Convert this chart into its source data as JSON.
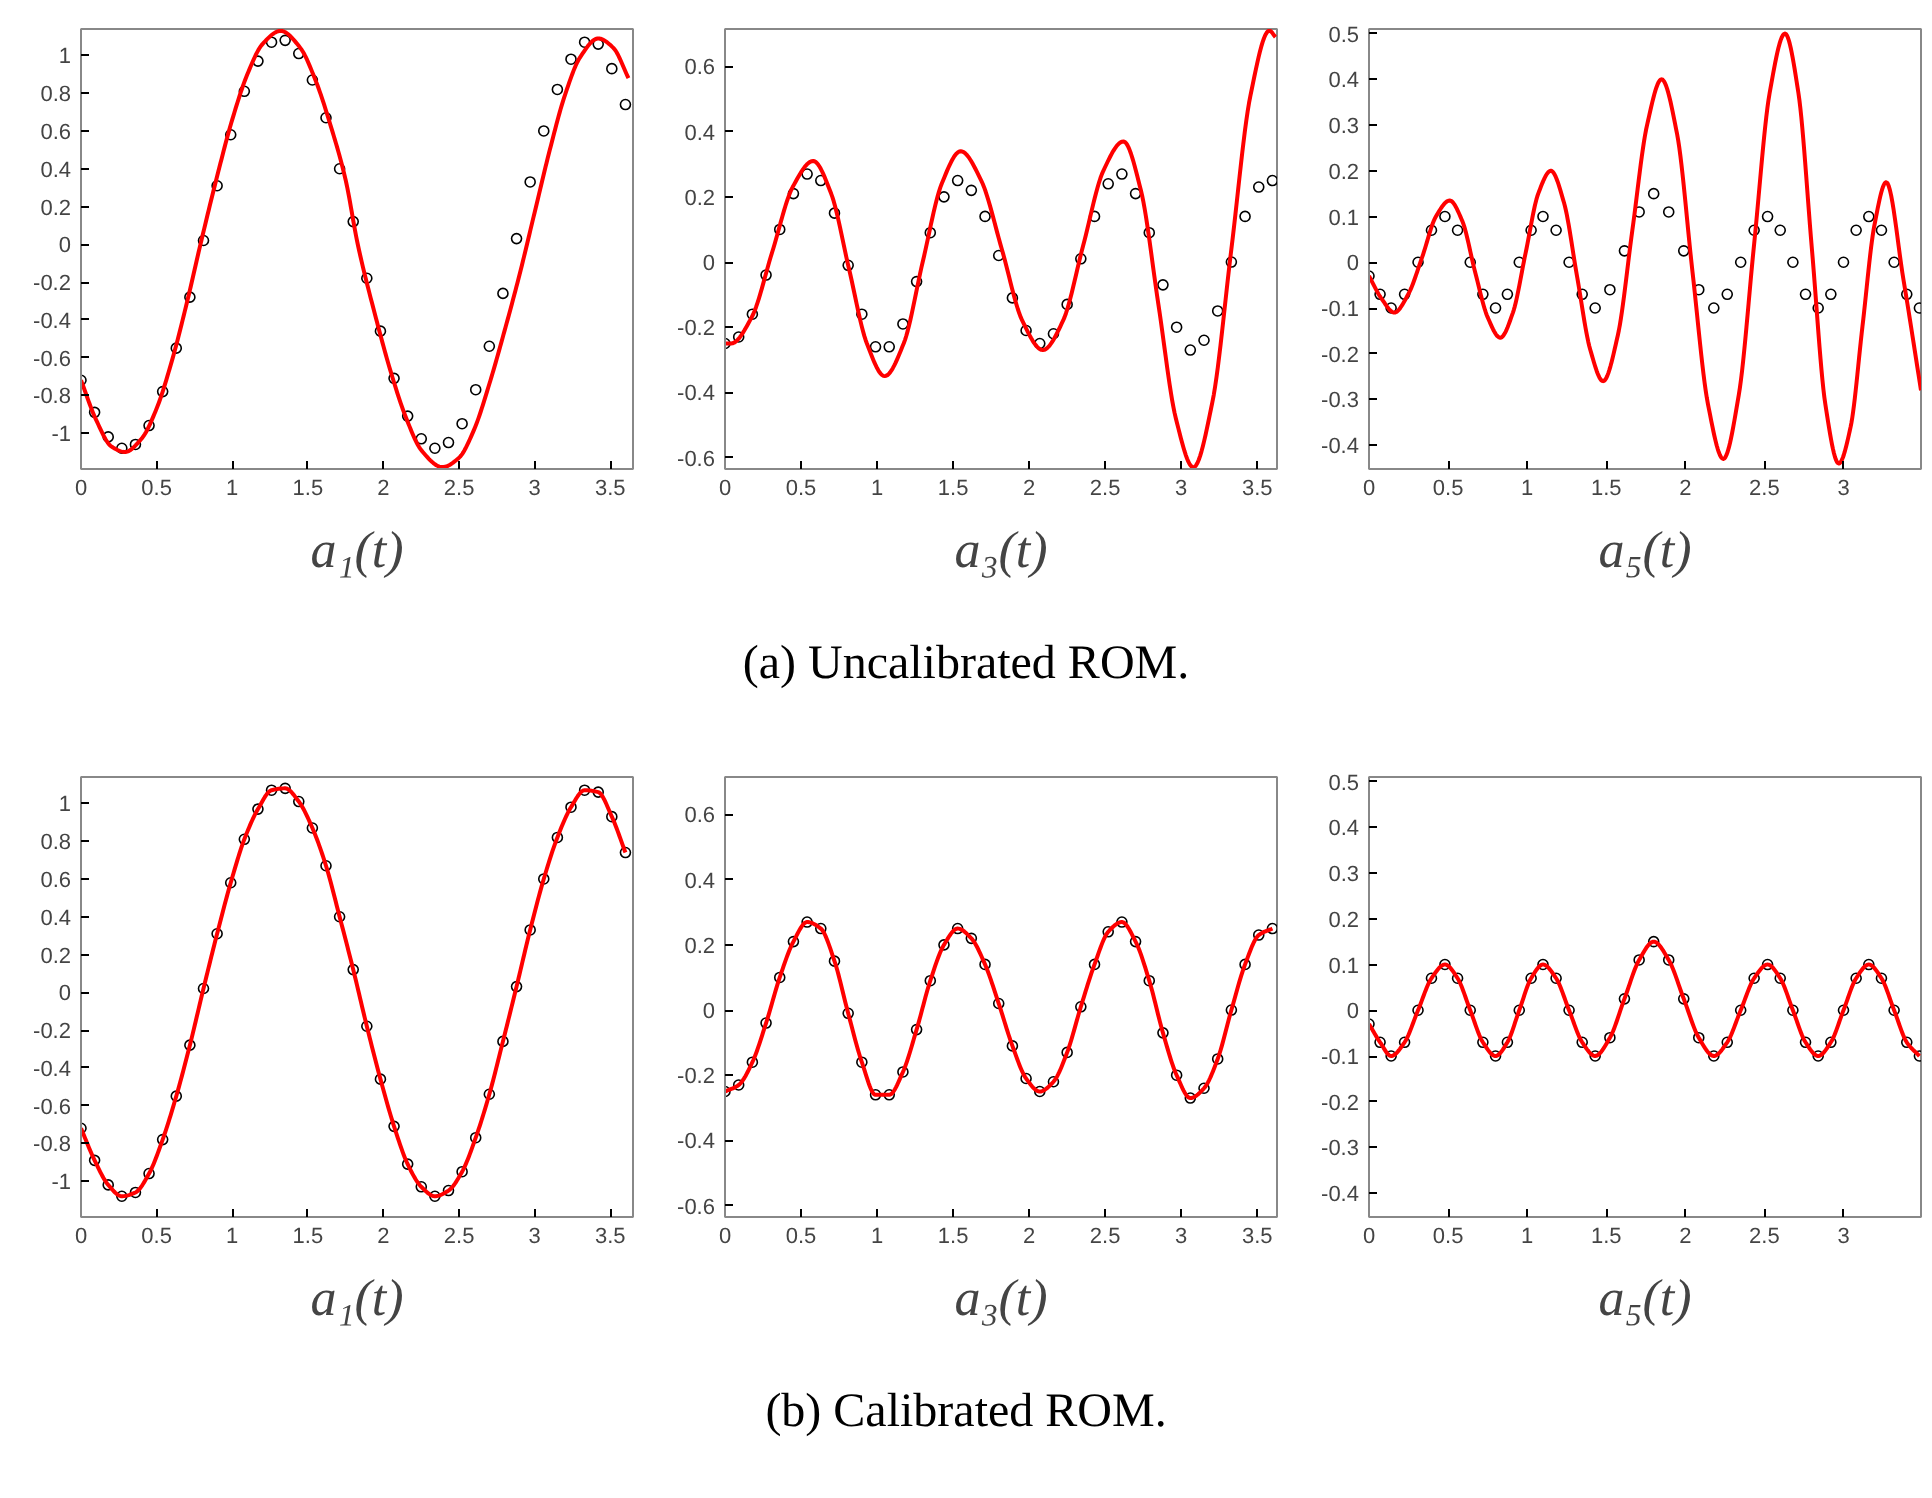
{
  "chart_data": [
    {
      "type": "scatter",
      "xlabel": "a₁(t)",
      "xlim": [
        0,
        3.65
      ],
      "ylim": [
        -1.19,
        1.14
      ],
      "xticks": [
        0,
        0.5,
        1,
        1.5,
        2,
        2.5,
        3,
        3.5
      ],
      "yticks": [
        -1,
        -0.8,
        -0.6,
        -0.4,
        -0.2,
        0,
        0.2,
        0.4,
        0.6,
        0.8,
        1
      ],
      "grid": false,
      "series": [
        {
          "marker": "circle",
          "color": "#000000",
          "x": [
            0,
            0.09,
            0.18,
            0.27,
            0.36,
            0.45,
            0.54,
            0.63,
            0.72,
            0.81,
            0.9,
            0.99,
            1.08,
            1.17,
            1.26,
            1.35,
            1.44,
            1.53,
            1.62,
            1.71,
            1.8,
            1.89,
            1.98,
            2.07,
            2.16,
            2.25,
            2.34,
            2.43,
            2.52,
            2.61,
            2.7,
            2.79,
            2.88,
            2.97,
            3.06,
            3.15,
            3.24,
            3.33,
            3.42,
            3.51,
            3.6
          ],
          "values": [
            -0.72,
            -0.89,
            -1.02,
            -1.08,
            -1.06,
            -0.96,
            -0.78,
            -0.55,
            -0.28,
            0.02,
            0.31,
            0.58,
            0.81,
            0.97,
            1.07,
            1.08,
            1.01,
            0.87,
            0.67,
            0.4,
            0.12,
            -0.18,
            -0.46,
            -0.71,
            -0.91,
            -1.03,
            -1.08,
            -1.05,
            -0.95,
            -0.77,
            -0.54,
            -0.26,
            0.03,
            0.33,
            0.6,
            0.82,
            0.98,
            1.07,
            1.06,
            0.93,
            0.74
          ]
        },
        {
          "type": "line",
          "color": "#ff0000",
          "x": [
            0,
            0.1,
            0.2,
            0.29,
            0.4,
            0.5,
            0.6,
            0.7,
            0.79,
            0.9,
            1.0,
            1.1,
            1.2,
            1.32,
            1.45,
            1.55,
            1.65,
            1.75,
            1.83,
            1.95,
            2.05,
            2.15,
            2.25,
            2.39,
            2.5,
            2.6,
            2.7,
            2.8,
            2.9,
            3.0,
            3.1,
            3.2,
            3.3,
            3.42,
            3.52,
            3.62
          ],
          "values": [
            -0.72,
            -0.93,
            -1.07,
            -1.1,
            -1.03,
            -0.87,
            -0.62,
            -0.31,
            0,
            0.36,
            0.66,
            0.9,
            1.06,
            1.13,
            1.04,
            0.87,
            0.63,
            0.34,
            0,
            -0.39,
            -0.68,
            -0.92,
            -1.09,
            -1.18,
            -1.13,
            -0.98,
            -0.74,
            -0.46,
            -0.16,
            0.17,
            0.5,
            0.79,
            0.99,
            1.09,
            1.04,
            0.88
          ]
        }
      ]
    },
    {
      "type": "scatter",
      "xlabel": "a₃(t)",
      "annotations": [
        "(a) Uncalibrated ROM."
      ],
      "xlim": [
        0,
        3.63
      ],
      "ylim": [
        -0.635,
        0.715
      ],
      "xticks": [
        0,
        0.5,
        1,
        1.5,
        2,
        2.5,
        3,
        3.5
      ],
      "yticks": [
        -0.6,
        -0.4,
        -0.2,
        0,
        0.2,
        0.4,
        0.6
      ],
      "grid": false,
      "series": [
        {
          "marker": "circle",
          "color": "#000000",
          "x": [
            0,
            0.09,
            0.18,
            0.27,
            0.36,
            0.45,
            0.54,
            0.63,
            0.72,
            0.81,
            0.9,
            0.99,
            1.08,
            1.17,
            1.26,
            1.35,
            1.44,
            1.53,
            1.62,
            1.71,
            1.8,
            1.89,
            1.98,
            2.07,
            2.16,
            2.25,
            2.34,
            2.43,
            2.52,
            2.61,
            2.7,
            2.79,
            2.88,
            2.97,
            3.06,
            3.15,
            3.24,
            3.33,
            3.42,
            3.51,
            3.6
          ],
          "values": [
            -0.25,
            -0.23,
            -0.16,
            -0.04,
            0.1,
            0.21,
            0.27,
            0.25,
            0.15,
            -0.01,
            -0.16,
            -0.26,
            -0.26,
            -0.19,
            -0.06,
            0.09,
            0.2,
            0.25,
            0.22,
            0.14,
            0.02,
            -0.11,
            -0.21,
            -0.25,
            -0.22,
            -0.13,
            0.01,
            0.14,
            0.24,
            0.27,
            0.21,
            0.09,
            -0.07,
            -0.2,
            -0.27,
            -0.24,
            -0.15,
            0.0,
            0.14,
            0.23,
            0.25
          ]
        },
        {
          "type": "line",
          "color": "#ff0000",
          "x": [
            0,
            0.04,
            0.175,
            0.31,
            0.445,
            0.58,
            0.698,
            0.815,
            0.933,
            1.05,
            1.175,
            1.3,
            1.425,
            1.55,
            1.685,
            1.82,
            1.955,
            2.09,
            2.223,
            2.355,
            2.488,
            2.62,
            2.735,
            2.85,
            2.965,
            3.08,
            3.205,
            3.33,
            3.455,
            3.58,
            3.62
          ],
          "values": [
            -0.25,
            -0.25,
            -0.17,
            0.03,
            0.23,
            0.31,
            0.21,
            -0.02,
            -0.25,
            -0.35,
            -0.25,
            0,
            0.24,
            0.34,
            0.25,
            0.04,
            -0.18,
            -0.27,
            -0.18,
            0.05,
            0.28,
            0.37,
            0.22,
            -0.13,
            -0.48,
            -0.63,
            -0.43,
            0.04,
            0.51,
            0.71,
            0.69
          ]
        }
      ]
    },
    {
      "type": "scatter",
      "xlabel": "a₅(t)",
      "xlim": [
        0,
        3.49
      ],
      "ylim": [
        -0.452,
        0.51
      ],
      "xticks": [
        0,
        0.5,
        1,
        1.5,
        2,
        2.5,
        3
      ],
      "yticks": [
        -0.4,
        -0.3,
        -0.2,
        -0.1,
        0,
        0.1,
        0.2,
        0.3,
        0.4,
        0.5
      ],
      "grid": false,
      "series": [
        {
          "marker": "circle",
          "color": "#000000",
          "x": [
            0,
            0.07,
            0.14,
            0.225,
            0.31,
            0.395,
            0.48,
            0.56,
            0.64,
            0.72,
            0.8,
            0.875,
            0.95,
            1.025,
            1.1,
            1.183,
            1.265,
            1.348,
            1.43,
            1.523,
            1.615,
            1.708,
            1.8,
            1.895,
            1.99,
            2.085,
            2.18,
            2.265,
            2.35,
            2.435,
            2.52,
            2.6,
            2.68,
            2.76,
            2.84,
            2.92,
            3.0,
            3.08,
            3.16,
            3.24,
            3.32,
            3.4,
            3.48
          ],
          "values": [
            -0.03,
            -0.07,
            -0.1,
            -0.07,
            0,
            0.07,
            0.1,
            0.07,
            0,
            -0.07,
            -0.1,
            -0.07,
            0,
            0.07,
            0.1,
            0.07,
            0,
            -0.07,
            -0.1,
            -0.06,
            0.025,
            0.11,
            0.15,
            0.11,
            0.025,
            -0.06,
            -0.1,
            -0.07,
            0,
            0.07,
            0.1,
            0.07,
            0,
            -0.07,
            -0.1,
            -0.07,
            0,
            0.07,
            0.1,
            0.07,
            0,
            -0.07,
            -0.1
          ]
        },
        {
          "type": "line",
          "color": "#ff0000",
          "x": [
            0,
            0.08,
            0.16,
            0.248,
            0.335,
            0.423,
            0.51,
            0.59,
            0.67,
            0.75,
            0.83,
            0.91,
            0.99,
            1.07,
            1.15,
            1.233,
            1.315,
            1.398,
            1.48,
            1.573,
            1.665,
            1.758,
            1.85,
            1.948,
            2.045,
            2.143,
            2.24,
            2.338,
            2.435,
            2.533,
            2.63,
            2.715,
            2.8,
            2.885,
            2.97,
            3.045,
            3.12,
            3.195,
            3.27,
            3.38,
            3.49
          ],
          "values": [
            -0.03,
            -0.08,
            -0.11,
            -0.07,
            0.01,
            0.1,
            0.135,
            0.09,
            -0.02,
            -0.12,
            -0.165,
            -0.11,
            0.02,
            0.15,
            0.2,
            0.13,
            -0.03,
            -0.19,
            -0.26,
            -0.16,
            0.07,
            0.3,
            0.4,
            0.28,
            -0.02,
            -0.31,
            -0.43,
            -0.29,
            0.04,
            0.37,
            0.5,
            0.37,
            0.03,
            -0.31,
            -0.44,
            -0.36,
            -0.14,
            0.08,
            0.175,
            -0.04,
            -0.28
          ]
        }
      ]
    },
    {
      "type": "scatter",
      "xlabel": "a₁(t)",
      "xlim": [
        0,
        3.65
      ],
      "ylim": [
        -1.19,
        1.14
      ],
      "xticks": [
        0,
        0.5,
        1,
        1.5,
        2,
        2.5,
        3,
        3.5
      ],
      "yticks": [
        -1,
        -0.8,
        -0.6,
        -0.4,
        -0.2,
        0,
        0.2,
        0.4,
        0.6,
        0.8,
        1
      ],
      "grid": false,
      "series": [
        {
          "marker": "circle",
          "color": "#000000",
          "x": [
            0,
            0.09,
            0.18,
            0.27,
            0.36,
            0.45,
            0.54,
            0.63,
            0.72,
            0.81,
            0.9,
            0.99,
            1.08,
            1.17,
            1.26,
            1.35,
            1.44,
            1.53,
            1.62,
            1.71,
            1.8,
            1.89,
            1.98,
            2.07,
            2.16,
            2.25,
            2.34,
            2.43,
            2.52,
            2.61,
            2.7,
            2.79,
            2.88,
            2.97,
            3.06,
            3.15,
            3.24,
            3.33,
            3.42,
            3.51,
            3.6
          ],
          "values": [
            -0.72,
            -0.89,
            -1.02,
            -1.08,
            -1.06,
            -0.96,
            -0.78,
            -0.55,
            -0.28,
            0.02,
            0.31,
            0.58,
            0.81,
            0.97,
            1.07,
            1.08,
            1.01,
            0.87,
            0.67,
            0.4,
            0.12,
            -0.18,
            -0.46,
            -0.71,
            -0.91,
            -1.03,
            -1.08,
            -1.05,
            -0.95,
            -0.77,
            -0.54,
            -0.26,
            0.03,
            0.33,
            0.6,
            0.82,
            0.98,
            1.07,
            1.06,
            0.93,
            0.74
          ]
        },
        {
          "type": "line",
          "color": "#ff0000",
          "x": [
            0,
            0.09,
            0.18,
            0.27,
            0.36,
            0.45,
            0.54,
            0.63,
            0.72,
            0.81,
            0.9,
            0.99,
            1.08,
            1.17,
            1.26,
            1.35,
            1.44,
            1.53,
            1.62,
            1.71,
            1.8,
            1.89,
            1.98,
            2.07,
            2.16,
            2.25,
            2.34,
            2.43,
            2.52,
            2.61,
            2.7,
            2.79,
            2.88,
            2.97,
            3.06,
            3.15,
            3.24,
            3.33,
            3.42,
            3.51,
            3.6
          ],
          "values": [
            -0.72,
            -0.89,
            -1.02,
            -1.08,
            -1.06,
            -0.96,
            -0.78,
            -0.55,
            -0.28,
            0.02,
            0.31,
            0.58,
            0.81,
            0.97,
            1.07,
            1.08,
            1.01,
            0.87,
            0.67,
            0.4,
            0.12,
            -0.18,
            -0.46,
            -0.71,
            -0.91,
            -1.03,
            -1.08,
            -1.05,
            -0.95,
            -0.77,
            -0.54,
            -0.26,
            0.03,
            0.33,
            0.6,
            0.82,
            0.98,
            1.07,
            1.06,
            0.93,
            0.74
          ]
        }
      ]
    },
    {
      "type": "scatter",
      "xlabel": "a₃(t)",
      "annotations": [
        "(b) Calibrated ROM."
      ],
      "xlim": [
        0,
        3.63
      ],
      "ylim": [
        -0.635,
        0.715
      ],
      "xticks": [
        0,
        0.5,
        1,
        1.5,
        2,
        2.5,
        3,
        3.5
      ],
      "yticks": [
        -0.6,
        -0.4,
        -0.2,
        0,
        0.2,
        0.4,
        0.6
      ],
      "grid": false,
      "series": [
        {
          "marker": "circle",
          "color": "#000000",
          "x": [
            0,
            0.09,
            0.18,
            0.27,
            0.36,
            0.45,
            0.54,
            0.63,
            0.72,
            0.81,
            0.9,
            0.99,
            1.08,
            1.17,
            1.26,
            1.35,
            1.44,
            1.53,
            1.62,
            1.71,
            1.8,
            1.89,
            1.98,
            2.07,
            2.16,
            2.25,
            2.34,
            2.43,
            2.52,
            2.61,
            2.7,
            2.79,
            2.88,
            2.97,
            3.06,
            3.15,
            3.24,
            3.33,
            3.42,
            3.51,
            3.6
          ],
          "values": [
            -0.25,
            -0.23,
            -0.16,
            -0.04,
            0.1,
            0.21,
            0.27,
            0.25,
            0.15,
            -0.01,
            -0.16,
            -0.26,
            -0.26,
            -0.19,
            -0.06,
            0.09,
            0.2,
            0.25,
            0.22,
            0.14,
            0.02,
            -0.11,
            -0.21,
            -0.25,
            -0.22,
            -0.13,
            0.01,
            0.14,
            0.24,
            0.27,
            0.21,
            0.09,
            -0.07,
            -0.2,
            -0.27,
            -0.24,
            -0.15,
            0.0,
            0.14,
            0.23,
            0.25
          ]
        },
        {
          "type": "line",
          "color": "#ff0000",
          "x": [
            0,
            0.09,
            0.18,
            0.27,
            0.36,
            0.45,
            0.54,
            0.63,
            0.72,
            0.81,
            0.9,
            0.99,
            1.08,
            1.17,
            1.26,
            1.35,
            1.44,
            1.53,
            1.62,
            1.71,
            1.8,
            1.89,
            1.98,
            2.07,
            2.16,
            2.25,
            2.34,
            2.43,
            2.52,
            2.61,
            2.7,
            2.79,
            2.88,
            2.97,
            3.06,
            3.15,
            3.24,
            3.33,
            3.42,
            3.51,
            3.6
          ],
          "values": [
            -0.25,
            -0.23,
            -0.16,
            -0.04,
            0.1,
            0.21,
            0.27,
            0.25,
            0.15,
            -0.01,
            -0.16,
            -0.26,
            -0.26,
            -0.19,
            -0.06,
            0.09,
            0.2,
            0.25,
            0.22,
            0.14,
            0.02,
            -0.11,
            -0.21,
            -0.25,
            -0.22,
            -0.13,
            0.01,
            0.14,
            0.24,
            0.27,
            0.21,
            0.09,
            -0.07,
            -0.2,
            -0.27,
            -0.24,
            -0.15,
            0.0,
            0.14,
            0.23,
            0.25
          ]
        }
      ]
    },
    {
      "type": "scatter",
      "xlabel": "a₅(t)",
      "xlim": [
        0,
        3.49
      ],
      "ylim": [
        -0.452,
        0.51
      ],
      "xticks": [
        0,
        0.5,
        1,
        1.5,
        2,
        2.5,
        3
      ],
      "yticks": [
        -0.4,
        -0.3,
        -0.2,
        -0.1,
        0,
        0.1,
        0.2,
        0.3,
        0.4,
        0.5
      ],
      "grid": false,
      "series": [
        {
          "marker": "circle",
          "color": "#000000",
          "x": [
            0,
            0.07,
            0.14,
            0.225,
            0.31,
            0.395,
            0.48,
            0.56,
            0.64,
            0.72,
            0.8,
            0.875,
            0.95,
            1.025,
            1.1,
            1.183,
            1.265,
            1.348,
            1.43,
            1.523,
            1.615,
            1.708,
            1.8,
            1.895,
            1.99,
            2.085,
            2.18,
            2.265,
            2.35,
            2.435,
            2.52,
            2.6,
            2.68,
            2.76,
            2.84,
            2.92,
            3.0,
            3.08,
            3.16,
            3.24,
            3.32,
            3.4,
            3.48
          ],
          "values": [
            -0.03,
            -0.07,
            -0.1,
            -0.07,
            0,
            0.07,
            0.1,
            0.07,
            0,
            -0.07,
            -0.1,
            -0.07,
            0,
            0.07,
            0.1,
            0.07,
            0,
            -0.07,
            -0.1,
            -0.06,
            0.025,
            0.11,
            0.15,
            0.11,
            0.025,
            -0.06,
            -0.1,
            -0.07,
            0,
            0.07,
            0.1,
            0.07,
            0,
            -0.07,
            -0.1,
            -0.07,
            0,
            0.07,
            0.1,
            0.07,
            0,
            -0.07,
            -0.1
          ]
        },
        {
          "type": "line",
          "color": "#ff0000",
          "x": [
            0,
            0.07,
            0.14,
            0.225,
            0.31,
            0.395,
            0.48,
            0.56,
            0.64,
            0.72,
            0.8,
            0.875,
            0.95,
            1.025,
            1.1,
            1.183,
            1.265,
            1.348,
            1.43,
            1.523,
            1.615,
            1.708,
            1.8,
            1.895,
            1.99,
            2.085,
            2.18,
            2.265,
            2.35,
            2.435,
            2.52,
            2.6,
            2.68,
            2.76,
            2.84,
            2.92,
            3.0,
            3.08,
            3.16,
            3.24,
            3.32,
            3.4,
            3.48
          ],
          "values": [
            -0.03,
            -0.07,
            -0.1,
            -0.07,
            0,
            0.07,
            0.1,
            0.07,
            0,
            -0.07,
            -0.1,
            -0.07,
            0,
            0.07,
            0.1,
            0.07,
            0,
            -0.07,
            -0.1,
            -0.06,
            0.025,
            0.11,
            0.15,
            0.11,
            0.025,
            -0.06,
            -0.1,
            -0.07,
            0,
            0.07,
            0.1,
            0.07,
            0,
            -0.07,
            -0.1,
            -0.07,
            0,
            0.07,
            0.1,
            0.07,
            0,
            -0.07,
            -0.1
          ]
        }
      ]
    }
  ]
}
